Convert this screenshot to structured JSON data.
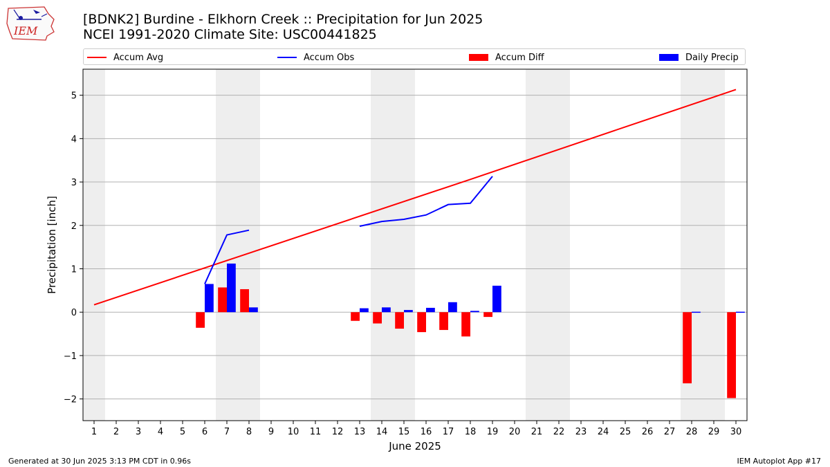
{
  "logo": {
    "text": "IEM"
  },
  "title_line1": "[BDNK2] Burdine - Elkhorn Creek :: Precipitation for Jun 2025",
  "title_line2": "NCEI 1991-2020 Climate Site: USC00441825",
  "footer_left": "Generated at 30 Jun 2025 3:13 PM CDT in 0.96s",
  "footer_right": "IEM Autoplot App #17",
  "colors": {
    "avg": "#ff0000",
    "obs": "#0000ff",
    "diff": "#ff0000",
    "daily": "#0000ff",
    "weekend": "#eeeeee",
    "grid": "#b0b0b0"
  },
  "chart_data": {
    "type": "bar",
    "xlabel": "June 2025",
    "ylabel": "Precipitation [inch]",
    "xlim": [
      0.5,
      30.5
    ],
    "ylim": [
      -2.5,
      5.6
    ],
    "grid": true,
    "legend_position": "top",
    "x_ticks": [
      1,
      2,
      3,
      4,
      5,
      6,
      7,
      8,
      9,
      10,
      11,
      12,
      13,
      14,
      15,
      16,
      17,
      18,
      19,
      20,
      21,
      22,
      23,
      24,
      25,
      26,
      27,
      28,
      29,
      30
    ],
    "y_ticks": [
      -2,
      -1,
      0,
      1,
      2,
      3,
      4,
      5
    ],
    "y_tick_labels": [
      "−2",
      "−1",
      "0",
      "1",
      "2",
      "3",
      "4",
      "5"
    ],
    "weekend_spans": [
      [
        0.5,
        1.5
      ],
      [
        6.5,
        8.5
      ],
      [
        13.5,
        15.5
      ],
      [
        20.5,
        22.5
      ],
      [
        27.5,
        29.5
      ]
    ],
    "legend": [
      {
        "label": "Accum Avg",
        "kind": "line",
        "color": "#ff0000"
      },
      {
        "label": "Accum Obs",
        "kind": "line",
        "color": "#0000ff"
      },
      {
        "label": "Accum Diff",
        "kind": "bar",
        "color": "#ff0000"
      },
      {
        "label": "Daily Precip",
        "kind": "bar",
        "color": "#0000ff"
      }
    ],
    "accum_avg": {
      "x": [
        1,
        8,
        18,
        25,
        30
      ],
      "y": [
        0.17,
        1.36,
        3.06,
        4.27,
        5.13
      ]
    },
    "accum_obs_segments": [
      {
        "x": [
          6,
          7,
          8
        ],
        "y": [
          0.65,
          1.78,
          1.89
        ]
      },
      {
        "x": [
          13,
          14,
          15,
          16,
          17,
          18,
          19
        ],
        "y": [
          1.98,
          2.09,
          2.14,
          2.24,
          2.48,
          2.51,
          3.13
        ]
      }
    ],
    "accum_diff": {
      "x": [
        6,
        7,
        8,
        13,
        14,
        15,
        16,
        17,
        18,
        19,
        28,
        30
      ],
      "y": [
        -0.36,
        0.57,
        0.53,
        -0.2,
        -0.26,
        -0.38,
        -0.46,
        -0.41,
        -0.56,
        -0.11,
        -1.64,
        -1.98
      ]
    },
    "daily_precip": {
      "x": [
        6,
        7,
        8,
        13,
        14,
        15,
        16,
        17,
        18,
        19,
        28,
        30
      ],
      "y": [
        0.65,
        1.12,
        0.11,
        0.09,
        0.11,
        0.05,
        0.1,
        0.23,
        0.03,
        0.61,
        0.01,
        0.01
      ]
    }
  }
}
